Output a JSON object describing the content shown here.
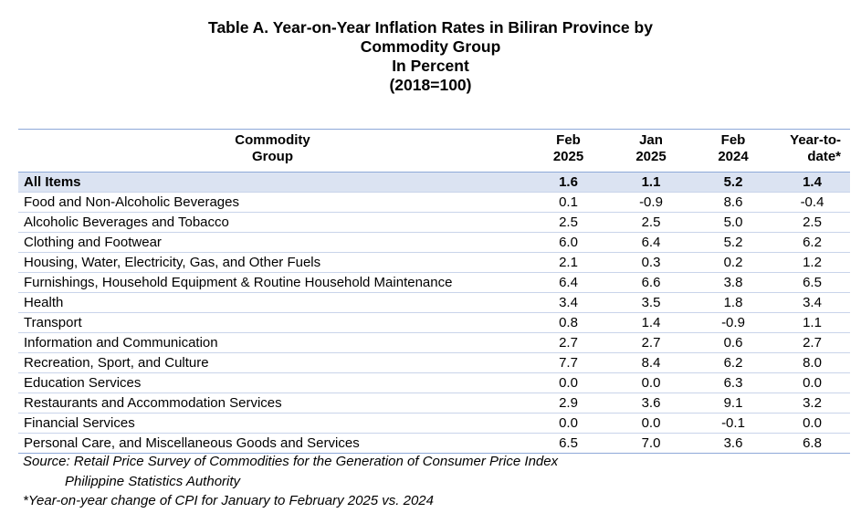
{
  "title": {
    "line1": "Table A. Year-on-Year Inflation Rates in Biliran Province by",
    "line2": "Commodity Group",
    "line3": "In Percent",
    "line4": "(2018=100)"
  },
  "headers": {
    "group_line1": "Commodity",
    "group_line2": "Group",
    "c1_line1": "Feb",
    "c1_line2": "2025",
    "c2_line1": "Jan",
    "c2_line2": "2025",
    "c3_line1": "Feb",
    "c3_line2": "2024",
    "c4_line1": "Year-to-",
    "c4_line2": "date*"
  },
  "rows": [
    {
      "name": "All Items",
      "feb2025": "1.6",
      "jan2025": "1.1",
      "feb2024": "5.2",
      "ytd": "1.4"
    },
    {
      "name": "Food and Non-Alcoholic Beverages",
      "feb2025": "0.1",
      "jan2025": "-0.9",
      "feb2024": "8.6",
      "ytd": "-0.4"
    },
    {
      "name": "Alcoholic Beverages and Tobacco",
      "feb2025": "2.5",
      "jan2025": "2.5",
      "feb2024": "5.0",
      "ytd": "2.5"
    },
    {
      "name": "Clothing and Footwear",
      "feb2025": "6.0",
      "jan2025": "6.4",
      "feb2024": "5.2",
      "ytd": "6.2"
    },
    {
      "name": "Housing, Water, Electricity, Gas, and Other Fuels",
      "feb2025": "2.1",
      "jan2025": "0.3",
      "feb2024": "0.2",
      "ytd": "1.2"
    },
    {
      "name": "Furnishings, Household Equipment & Routine Household Maintenance",
      "feb2025": "6.4",
      "jan2025": "6.6",
      "feb2024": "3.8",
      "ytd": "6.5"
    },
    {
      "name": "Health",
      "feb2025": "3.4",
      "jan2025": "3.5",
      "feb2024": "1.8",
      "ytd": "3.4"
    },
    {
      "name": "Transport",
      "feb2025": "0.8",
      "jan2025": "1.4",
      "feb2024": "-0.9",
      "ytd": "1.1"
    },
    {
      "name": "Information and Communication",
      "feb2025": "2.7",
      "jan2025": "2.7",
      "feb2024": "0.6",
      "ytd": "2.7"
    },
    {
      "name": "Recreation, Sport, and Culture",
      "feb2025": "7.7",
      "jan2025": "8.4",
      "feb2024": "6.2",
      "ytd": "8.0"
    },
    {
      "name": "Education Services",
      "feb2025": "0.0",
      "jan2025": "0.0",
      "feb2024": "6.3",
      "ytd": "0.0"
    },
    {
      "name": "Restaurants and Accommodation Services",
      "feb2025": "2.9",
      "jan2025": "3.6",
      "feb2024": "9.1",
      "ytd": "3.2"
    },
    {
      "name": "Financial Services",
      "feb2025": "0.0",
      "jan2025": "0.0",
      "feb2024": "-0.1",
      "ytd": "0.0"
    },
    {
      "name": "Personal Care, and Miscellaneous Goods and Services",
      "feb2025": "6.5",
      "jan2025": "7.0",
      "feb2024": "3.6",
      "ytd": "6.8"
    }
  ],
  "notes": {
    "source_line1": "Source: Retail Price Survey of Commodities for the Generation of Consumer Price Index",
    "source_line2": "Philippine Statistics Authority",
    "footnote": "*Year-on-year change of CPI for January to February 2025 vs. 2024"
  }
}
